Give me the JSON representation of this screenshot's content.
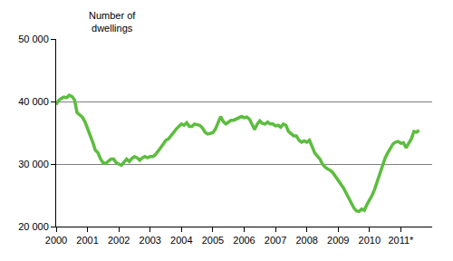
{
  "chart_data": {
    "type": "line",
    "y_label": "Number of\ndwellings",
    "categories": [
      "2000",
      null,
      null,
      null,
      null,
      null,
      null,
      null,
      null,
      null,
      null,
      null,
      "2001",
      null,
      null,
      null,
      null,
      null,
      null,
      null,
      null,
      null,
      null,
      null,
      "2002",
      null,
      null,
      null,
      null,
      null,
      null,
      null,
      null,
      null,
      null,
      null,
      "2003",
      null,
      null,
      null,
      null,
      null,
      null,
      null,
      null,
      null,
      null,
      null,
      "2004",
      null,
      null,
      null,
      null,
      null,
      null,
      null,
      null,
      null,
      null,
      null,
      "2005",
      null,
      null,
      null,
      null,
      null,
      null,
      null,
      null,
      null,
      null,
      null,
      "2006",
      null,
      null,
      null,
      null,
      null,
      null,
      null,
      null,
      null,
      null,
      null,
      "2007",
      null,
      null,
      null,
      null,
      null,
      null,
      null,
      null,
      null,
      null,
      null,
      "2008",
      null,
      null,
      null,
      null,
      null,
      null,
      null,
      null,
      null,
      null,
      null,
      "2009",
      null,
      null,
      null,
      null,
      null,
      null,
      null,
      null,
      null,
      null,
      null,
      "2010",
      null,
      null,
      null,
      null,
      null,
      null,
      null,
      null,
      null,
      null,
      null,
      "2011*",
      null,
      null,
      null,
      null,
      null,
      null,
      null,
      null,
      null,
      null,
      null
    ],
    "values": [
      39500,
      40200,
      40500,
      40700,
      40600,
      41000,
      40800,
      40300,
      38200,
      37800,
      37500,
      36800,
      35800,
      34800,
      33500,
      32200,
      31800,
      30800,
      30200,
      30100,
      30400,
      30800,
      30800,
      30200,
      30000,
      29800,
      30300,
      30800,
      30400,
      30900,
      31200,
      31000,
      30600,
      31000,
      31200,
      31000,
      31200,
      31200,
      31500,
      32000,
      32600,
      33200,
      33800,
      34000,
      34600,
      35200,
      35600,
      36000,
      36400,
      36200,
      36600,
      36000,
      36000,
      36400,
      36300,
      36200,
      35800,
      35100,
      34800,
      34900,
      35000,
      35600,
      36500,
      37600,
      36800,
      36400,
      36700,
      37000,
      37000,
      37200,
      37300,
      37600,
      37400,
      37500,
      37200,
      36200,
      35500,
      36400,
      36900,
      36500,
      36400,
      36700,
      36400,
      36400,
      36100,
      36200,
      35900,
      36400,
      36200,
      35200,
      34900,
      34500,
      34500,
      33800,
      33500,
      33700,
      33500,
      33800,
      32800,
      31800,
      31300,
      30800,
      30000,
      29500,
      29200,
      29000,
      28600,
      28000,
      27500,
      27000,
      26200,
      25400,
      24500,
      23800,
      23000,
      22500,
      22400,
      22800,
      22600,
      23500,
      24200,
      25000,
      26000,
      27200,
      28400,
      29800,
      31000,
      31800,
      32600,
      33200,
      33500,
      33600,
      33300,
      33400,
      32600,
      33300,
      34000,
      35200,
      35100,
      35400,
      null,
      null,
      null,
      null
    ],
    "color": "#5cbd3e",
    "ylim": [
      20000,
      50000
    ],
    "yticks": [
      {
        "value": 20000,
        "label": "20 000"
      },
      {
        "value": 30000,
        "label": "30 000"
      },
      {
        "value": 40000,
        "label": "40 000"
      },
      {
        "value": 50000,
        "label": "50 000"
      }
    ],
    "grid": true
  }
}
